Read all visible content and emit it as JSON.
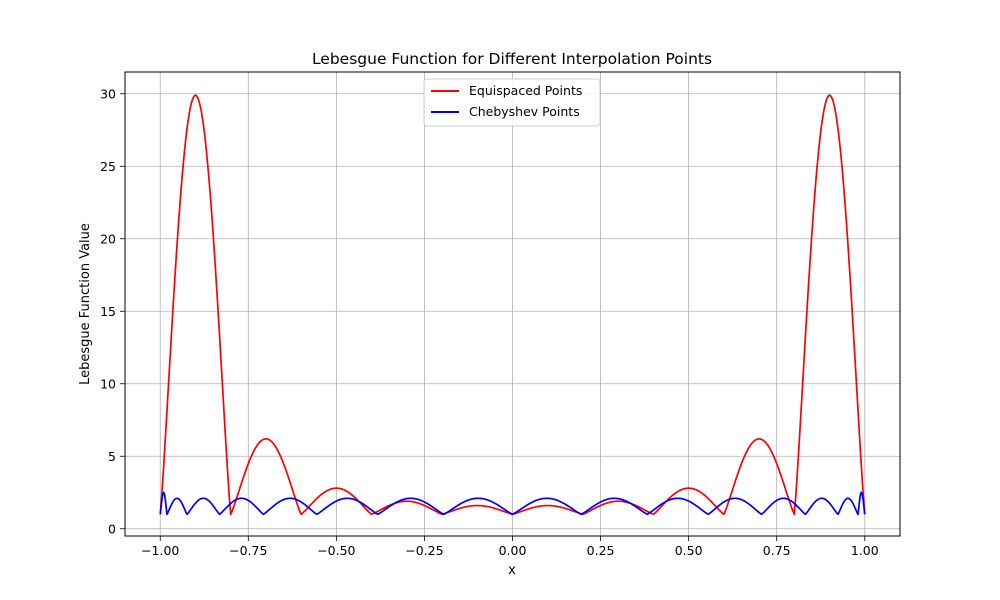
{
  "chart_data": {
    "type": "line",
    "title": "Lebesgue Function for Different Interpolation Points",
    "xlabel": "x",
    "ylabel": "Lebesgue Function Value",
    "xlim": [
      -1.1,
      1.1
    ],
    "ylim": [
      -0.5,
      31.5
    ],
    "xticks": [
      -1.0,
      -0.75,
      -0.5,
      -0.25,
      0.0,
      0.25,
      0.5,
      0.75,
      1.0
    ],
    "xtick_labels": [
      "−1.00",
      "−0.75",
      "−0.50",
      "−0.25",
      "0.00",
      "0.25",
      "0.50",
      "0.75",
      "1.00"
    ],
    "yticks": [
      0,
      5,
      10,
      15,
      20,
      25,
      30
    ],
    "ytick_labels": [
      "0",
      "5",
      "10",
      "15",
      "20",
      "25",
      "30"
    ],
    "grid": true,
    "legend_position": "top-center",
    "series": [
      {
        "name": "Equispaced Points",
        "color": "#ff0000",
        "nodes": [
          -1.0,
          -0.8,
          -0.6,
          -0.4,
          -0.2,
          0.0,
          0.2,
          0.4,
          0.6,
          0.8,
          1.0
        ],
        "peaks": [
          29.9,
          6.2,
          2.8,
          1.9,
          1.6,
          1.6,
          1.9,
          2.8,
          6.2,
          29.9
        ]
      },
      {
        "name": "Chebyshev Points",
        "color": "#0000ff",
        "nodes": [
          -1.0,
          -0.9808,
          -0.9239,
          -0.8315,
          -0.7071,
          -0.5556,
          -0.3827,
          -0.1951,
          0.0,
          0.1951,
          0.3827,
          0.5556,
          0.7071,
          0.8315,
          0.9239,
          0.9808,
          1.0
        ],
        "peaks": [
          2.5,
          2.1,
          2.1,
          2.1,
          2.1,
          2.1,
          2.1,
          2.1,
          2.1,
          2.1,
          2.1,
          2.1,
          2.1,
          2.1,
          2.1,
          2.5
        ],
        "node_value": 1.0
      }
    ]
  }
}
